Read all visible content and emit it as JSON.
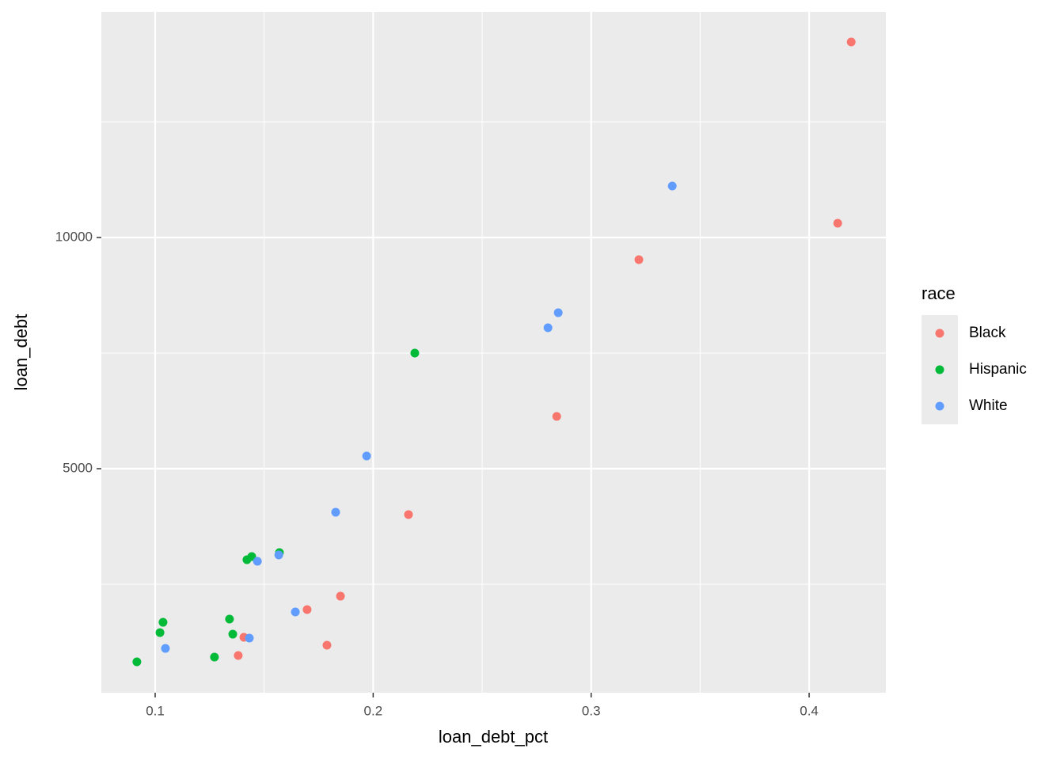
{
  "chart_data": {
    "type": "scatter",
    "x_label": "loan_debt_pct",
    "y_label": "loan_debt",
    "legend_title": "race",
    "xlim": [
      0.0753,
      0.4352
    ],
    "ylim": [
      155,
      14880
    ],
    "xticks": [
      0.1,
      0.2,
      0.3,
      0.4
    ],
    "yticks": [
      5000,
      10000
    ],
    "x_minor_ticks": [
      0.15,
      0.25,
      0.35
    ],
    "y_minor_ticks": [
      2500,
      7500,
      12500
    ],
    "grid": true,
    "legend_position": "right",
    "series": [
      {
        "name": "Black",
        "color": "#f8766d",
        "x": [
          0.4193,
          0.4131,
          0.3219,
          0.2842,
          0.2162,
          0.185,
          0.1697,
          0.1788,
          0.1407,
          0.1381
        ],
        "values": [
          14229,
          10308,
          9521,
          6130,
          4007,
          2243,
          1952,
          1182,
          1353,
          959
        ]
      },
      {
        "name": "Hispanic",
        "color": "#00ba38",
        "x": [
          0.2191,
          0.157,
          0.1443,
          0.1421,
          0.1341,
          0.1356,
          0.1036,
          0.1022,
          0.1272,
          0.0916
        ],
        "values": [
          7500,
          3185,
          3099,
          3031,
          1747,
          1421,
          1678,
          1455,
          925,
          822
        ]
      },
      {
        "name": "White",
        "color": "#619cff",
        "x": [
          0.3372,
          0.2849,
          0.2802,
          0.197,
          0.1828,
          0.1567,
          0.1469,
          0.1643,
          0.1432,
          0.1047
        ],
        "values": [
          11113,
          8373,
          8048,
          5274,
          4058,
          3134,
          2997,
          1901,
          1336,
          1113
        ]
      }
    ]
  }
}
